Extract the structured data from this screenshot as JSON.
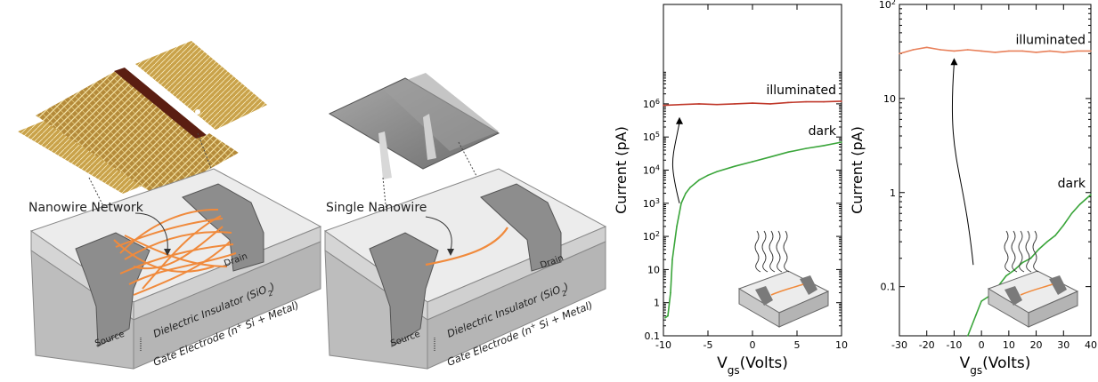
{
  "colors": {
    "illuminated_left": "#c0392b",
    "illuminated_right": "#e8805a",
    "dark": "#3aa53a",
    "nanowire": "#f08a3c",
    "electrode": "#8c8c8c",
    "insulator_top": "#e6e6e6",
    "substrate": "#c9c9c9",
    "afm_gold": "#c9a24a",
    "sem_gray": "#8a8a8a"
  },
  "devices": {
    "network": {
      "title": "Nanowire Network",
      "source": "Source",
      "drain": "Drain",
      "insulator": "Dielectric Insulator (SiO",
      "insulator_sub": "2",
      "insulator_end": ")",
      "gate": "Gate Electrode (n",
      "gate_sup": "+",
      "gate_end": " Si + Metal)",
      "image_icon": "afm-image-icon"
    },
    "single": {
      "title": "Single Nanowire",
      "source": "Source",
      "drain": "Drain",
      "insulator": "Dielectric Insulator (SiO",
      "insulator_sub": "2",
      "insulator_end": ")",
      "gate": "Gate Electrode (n",
      "gate_sup": "+",
      "gate_end": " Si + Metal)",
      "image_icon": "sem-image-icon"
    }
  },
  "chart_data": [
    {
      "type": "line",
      "ylabel": "Current (pA)",
      "xlabel_main": "V",
      "xlabel_sub": "gs",
      "xlabel_end": "(Volts)",
      "xlim": [
        -10,
        10
      ],
      "ylim": [
        0.1,
        1000000000
      ],
      "yscale": "log",
      "xticks": [
        -10,
        -5,
        0,
        5,
        10
      ],
      "xtick_labels": [
        "-10",
        "-5",
        "0",
        "5",
        "10"
      ],
      "yticks": [
        0.1,
        1,
        10,
        100,
        1000,
        10000,
        100000,
        1000000
      ],
      "ytick_labels": [
        {
          "base": "0.1",
          "exp": ""
        },
        {
          "base": "1",
          "exp": ""
        },
        {
          "base": "10",
          "exp": ""
        },
        {
          "base": "10",
          "exp": "2"
        },
        {
          "base": "10",
          "exp": "3"
        },
        {
          "base": "10",
          "exp": "4"
        },
        {
          "base": "10",
          "exp": "5"
        },
        {
          "base": "10",
          "exp": "6"
        }
      ],
      "series": [
        {
          "name": "illuminated",
          "x": [
            -10,
            -8,
            -6,
            -4,
            -2,
            0,
            2,
            4,
            6,
            8,
            10
          ],
          "y": [
            900000,
            950000,
            1000000,
            950000,
            1000000,
            1050000,
            1000000,
            1100000,
            1150000,
            1150000,
            1200000
          ]
        },
        {
          "name": "dark",
          "x": [
            -9.8,
            -9.5,
            -9.2,
            -9.0,
            -8.5,
            -8.0,
            -7.5,
            -7.0,
            -6.0,
            -5.0,
            -4.0,
            -2.0,
            0,
            2,
            4,
            6,
            8,
            10
          ],
          "y": [
            0.35,
            0.4,
            2,
            20,
            200,
            1000,
            2000,
            3000,
            5000,
            7000,
            9000,
            13000,
            18000,
            25000,
            35000,
            45000,
            55000,
            70000
          ]
        }
      ],
      "annotation_arrow": {
        "from": [
          -8.2,
          1000
        ],
        "to": [
          -8.2,
          400000
        ]
      },
      "inset_icon": "network-device-light-icon"
    },
    {
      "type": "line",
      "ylabel": "Current (pA)",
      "xlabel_main": "V",
      "xlabel_sub": "gs",
      "xlabel_end": "(Volts)",
      "xlim": [
        -30,
        40
      ],
      "ylim": [
        0.03,
        100
      ],
      "yscale": "log",
      "xticks": [
        -30,
        -20,
        -10,
        0,
        10,
        20,
        30,
        40
      ],
      "xtick_labels": [
        "-30",
        "-20",
        "-10",
        "0",
        "10",
        "20",
        "30",
        "40"
      ],
      "yticks": [
        0.1,
        1,
        10,
        100
      ],
      "ytick_labels": [
        {
          "base": "0.1",
          "exp": ""
        },
        {
          "base": "1",
          "exp": ""
        },
        {
          "base": "10",
          "exp": ""
        },
        {
          "base": "10",
          "exp": "2"
        }
      ],
      "series": [
        {
          "name": "illuminated",
          "x": [
            -30,
            -25,
            -20,
            -15,
            -10,
            -5,
            0,
            5,
            10,
            15,
            20,
            25,
            30,
            35,
            40
          ],
          "y": [
            30,
            33,
            35,
            33,
            32,
            33,
            32,
            31,
            32,
            32,
            31,
            32,
            31,
            32,
            32
          ]
        },
        {
          "name": "dark",
          "x": [
            -5,
            -2,
            0,
            3,
            6,
            9,
            12,
            15,
            18,
            21,
            24,
            27,
            30,
            33,
            36,
            40
          ],
          "y": [
            0.03,
            0.05,
            0.07,
            0.08,
            0.1,
            0.13,
            0.15,
            0.18,
            0.2,
            0.25,
            0.3,
            0.35,
            0.45,
            0.6,
            0.75,
            0.95
          ]
        }
      ],
      "annotation_arrow": {
        "from": [
          -3,
          0.17
        ],
        "to": [
          -10,
          27
        ]
      },
      "inset_icon": "single-device-light-icon"
    }
  ]
}
